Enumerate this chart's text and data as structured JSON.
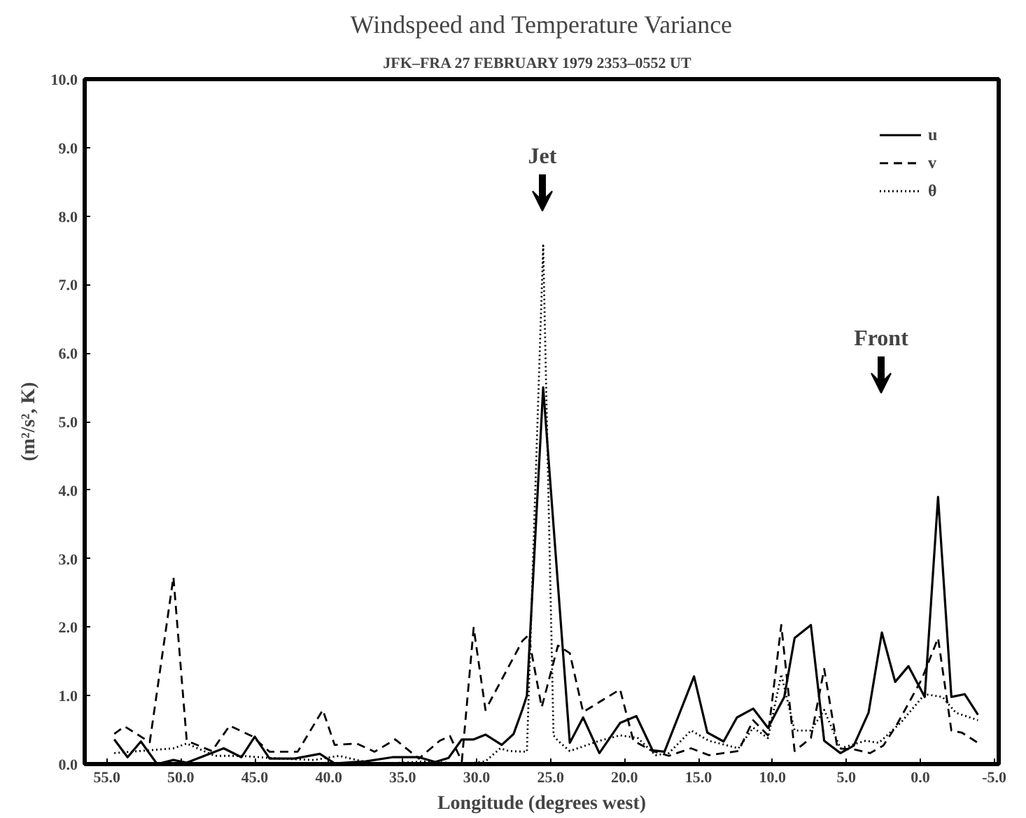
{
  "chart_data": {
    "type": "line",
    "title": "Windspeed and Temperature Variance",
    "subtitle": "JFK–FRA  27 FEBRUARY 1979  2353–0552 UT",
    "xlabel": "Longitude (degrees west)",
    "ylabel": "(m²/s², K)",
    "xlim": [
      56.5,
      -5.3
    ],
    "ylim": [
      0,
      10
    ],
    "xticks": [
      {
        "value": 55,
        "label": "55.0"
      },
      {
        "value": 50,
        "label": "50.0"
      },
      {
        "value": 45,
        "label": "45.0"
      },
      {
        "value": 40,
        "label": "40.0"
      },
      {
        "value": 35,
        "label": "35.0"
      },
      {
        "value": 30,
        "label": "30.0"
      },
      {
        "value": 25,
        "label": "25.0"
      },
      {
        "value": 20,
        "label": "20.0"
      },
      {
        "value": 15,
        "label": "15.0"
      },
      {
        "value": 10,
        "label": "10.0"
      },
      {
        "value": 5,
        "label": "5.0"
      },
      {
        "value": 0,
        "label": "0.0"
      },
      {
        "value": -5,
        "label": "-5.0"
      }
    ],
    "yticks": [
      {
        "value": 0,
        "label": "0.0"
      },
      {
        "value": 1,
        "label": "1.0"
      },
      {
        "value": 2,
        "label": "2.0"
      },
      {
        "value": 3,
        "label": "3.0"
      },
      {
        "value": 4,
        "label": "4.0"
      },
      {
        "value": 5,
        "label": "5.0"
      },
      {
        "value": 6,
        "label": "6.0"
      },
      {
        "value": 7,
        "label": "7.0"
      },
      {
        "value": 8,
        "label": "8.0"
      },
      {
        "value": 9,
        "label": "9.0"
      },
      {
        "value": 10,
        "label": "10.0"
      }
    ],
    "grid": false,
    "legend": "top right",
    "marker": "none",
    "series": [
      {
        "name": "u",
        "color": "#000000",
        "line_style": "solid",
        "x": [
          54.5,
          53.6,
          52.7,
          51.6,
          50.5,
          49.6,
          47.1,
          45.9,
          45.0,
          44.0,
          42.3,
          40.6,
          39.6,
          37.5,
          35.7,
          33.9,
          32.8,
          31.9,
          31.0,
          30.2,
          29.4,
          28.3,
          27.5,
          26.9,
          26.6,
          25.5,
          23.7,
          22.8,
          21.7,
          20.3,
          19.2,
          18.1,
          17.3,
          15.3,
          14.4,
          13.3,
          12.4,
          11.3,
          10.3,
          9.2,
          8.5,
          7.4,
          6.5,
          5.4,
          4.5,
          3.5,
          2.6,
          1.7,
          0.8,
          -0.3,
          -1.2,
          -2.1,
          -3.0,
          -3.9
        ],
        "values": [
          0.36,
          0.1,
          0.33,
          0.0,
          0.06,
          0.02,
          0.23,
          0.1,
          0.4,
          0.08,
          0.08,
          0.15,
          0.01,
          0.04,
          0.1,
          0.1,
          0.03,
          0.09,
          0.36,
          0.36,
          0.43,
          0.28,
          0.44,
          0.8,
          1.0,
          5.5,
          0.31,
          0.68,
          0.16,
          0.6,
          0.7,
          0.2,
          0.18,
          1.28,
          0.46,
          0.33,
          0.68,
          0.81,
          0.53,
          0.98,
          1.84,
          2.03,
          0.34,
          0.16,
          0.27,
          0.75,
          1.92,
          1.2,
          1.43,
          0.98,
          3.9,
          0.98,
          1.02,
          0.72
        ]
      },
      {
        "name": "v",
        "color": "#000000",
        "line_style": "dashed",
        "x": [
          54.5,
          53.8,
          52.1,
          50.5,
          49.6,
          47.9,
          46.7,
          45.2,
          44.0,
          42.1,
          40.4,
          39.6,
          38.1,
          36.9,
          35.5,
          33.9,
          32.5,
          31.8,
          31.0,
          30.2,
          29.4,
          26.9,
          26.5,
          25.6,
          24.5,
          23.7,
          22.8,
          20.3,
          19.4,
          18.1,
          17.0,
          15.5,
          14.3,
          12.3,
          11.3,
          10.3,
          9.4,
          8.5,
          7.4,
          6.5,
          5.6,
          4.4,
          3.4,
          2.5,
          1.6,
          -0.1,
          -1.2,
          -2.1,
          -2.8,
          -3.9
        ],
        "values": [
          0.44,
          0.55,
          0.32,
          2.73,
          0.34,
          0.19,
          0.56,
          0.41,
          0.18,
          0.18,
          0.79,
          0.28,
          0.3,
          0.18,
          0.36,
          0.08,
          0.34,
          0.41,
          0.04,
          1.99,
          0.79,
          1.8,
          1.88,
          0.83,
          1.73,
          1.62,
          0.76,
          1.09,
          0.34,
          0.19,
          0.12,
          0.23,
          0.13,
          0.19,
          0.64,
          0.42,
          2.03,
          0.19,
          0.38,
          1.39,
          0.23,
          0.21,
          0.16,
          0.27,
          0.57,
          1.24,
          1.84,
          0.49,
          0.46,
          0.31
        ]
      },
      {
        "name": "θ",
        "color": "#000000",
        "line_style": "dotted",
        "x": [
          54.5,
          50.5,
          49.6,
          47.7,
          45.9,
          43.4,
          41.0,
          39.3,
          36.9,
          33.3,
          30.9,
          29.4,
          28.4,
          27.8,
          26.6,
          25.5,
          24.8,
          24.5,
          23.7,
          21.7,
          20.3,
          19.1,
          17.9,
          17.0,
          15.5,
          14.3,
          12.3,
          11.3,
          10.3,
          9.4,
          8.5,
          7.4,
          6.5,
          5.4,
          3.7,
          2.8,
          1.3,
          -0.3,
          -1.5,
          -2.4,
          -3.9
        ],
        "values": [
          0.16,
          0.23,
          0.3,
          0.12,
          0.12,
          0.08,
          0.06,
          0.12,
          0.0,
          0.04,
          0.0,
          0.04,
          0.23,
          0.19,
          0.18,
          7.57,
          0.42,
          0.34,
          0.19,
          0.34,
          0.42,
          0.38,
          0.13,
          0.16,
          0.49,
          0.34,
          0.23,
          0.53,
          0.38,
          1.31,
          0.49,
          0.49,
          0.79,
          0.23,
          0.34,
          0.31,
          0.61,
          1.02,
          0.98,
          0.75,
          0.64
        ]
      }
    ],
    "annotations": [
      "Jet",
      "Front"
    ]
  }
}
